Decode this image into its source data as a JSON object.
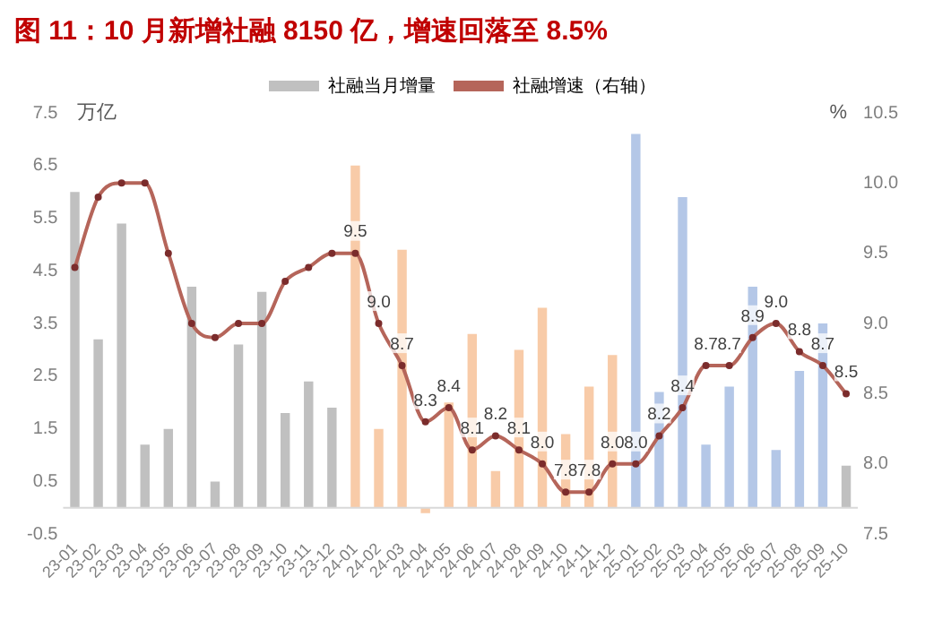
{
  "chart_data": {
    "type": "bar",
    "title": "图 11：10 月新增社融 8150 亿，增速回落至 8.5%",
    "ylabel": "万亿",
    "y2label": "%",
    "categories": [
      "23-01",
      "23-02",
      "23-03",
      "23-04",
      "23-05",
      "23-06",
      "23-07",
      "23-08",
      "23-09",
      "23-10",
      "23-11",
      "23-12",
      "24-01",
      "24-02",
      "24-03",
      "24-04",
      "24-05",
      "24-06",
      "24-07",
      "24-08",
      "24-09",
      "24-10",
      "24-11",
      "24-12",
      "25-01",
      "25-02",
      "25-03",
      "25-04",
      "25-05",
      "25-06",
      "25-07",
      "25-08",
      "25-09",
      "25-10"
    ],
    "series": [
      {
        "name": "社融当月增量",
        "axis": "y",
        "color": "#c0c0c0",
        "colors": [
          "#c0c0c0",
          "#c0c0c0",
          "#c0c0c0",
          "#c0c0c0",
          "#c0c0c0",
          "#c0c0c0",
          "#c0c0c0",
          "#c0c0c0",
          "#c0c0c0",
          "#c0c0c0",
          "#c0c0c0",
          "#c0c0c0",
          "#f8cba8",
          "#f8cba8",
          "#f8cba8",
          "#f8cba8",
          "#f8cba8",
          "#f8cba8",
          "#f8cba8",
          "#f8cba8",
          "#f8cba8",
          "#f8cba8",
          "#f8cba8",
          "#f8cba8",
          "#b4c7e7",
          "#b4c7e7",
          "#b4c7e7",
          "#b4c7e7",
          "#b4c7e7",
          "#b4c7e7",
          "#b4c7e7",
          "#b4c7e7",
          "#b4c7e7",
          "#c0c0c0"
        ],
        "values": [
          6.0,
          3.2,
          5.4,
          1.2,
          1.5,
          4.2,
          0.5,
          3.1,
          4.1,
          1.8,
          2.4,
          1.9,
          6.5,
          1.5,
          4.9,
          -0.1,
          2.0,
          3.3,
          0.7,
          3.0,
          3.8,
          1.4,
          2.3,
          2.9,
          7.1,
          2.2,
          5.9,
          1.2,
          2.3,
          4.2,
          1.1,
          2.6,
          3.5,
          0.8
        ]
      },
      {
        "name": "社融增速（右轴）",
        "type": "line",
        "axis": "y2",
        "color": "#b5655a",
        "marker": "circle",
        "line_style": "solid",
        "values": [
          9.4,
          9.9,
          10.0,
          10.0,
          9.5,
          9.0,
          8.9,
          9.0,
          9.0,
          9.3,
          9.4,
          9.5,
          9.5,
          9.0,
          8.7,
          8.3,
          8.4,
          8.1,
          8.2,
          8.1,
          8.0,
          7.8,
          7.8,
          8.0,
          8.0,
          8.2,
          8.4,
          8.7,
          8.7,
          8.9,
          9.0,
          8.8,
          8.7,
          8.5
        ],
        "value_labels": [
          null,
          null,
          null,
          null,
          null,
          null,
          null,
          null,
          null,
          null,
          null,
          null,
          "9.5",
          "9.0",
          "8.7",
          "8.3",
          "8.4",
          "8.1",
          "8.2",
          "8.1",
          "8.0",
          "7.8",
          "7.8",
          "8.0",
          "8.0",
          "8.2",
          "8.4",
          "8.7",
          "8.7",
          "8.9",
          "9.0",
          "8.8",
          "8.7",
          "8.5"
        ]
      }
    ],
    "ylim": [
      -0.5,
      7.5
    ],
    "yticks": [
      -0.5,
      0.5,
      1.5,
      2.5,
      3.5,
      4.5,
      5.5,
      6.5,
      7.5
    ],
    "y2lim": [
      7.5,
      10.5
    ],
    "y2ticks": [
      7.5,
      {
        "value": 8,
        "label": "8.0"
      },
      8.5,
      {
        "value": 9,
        "label": "9.0"
      },
      9.5,
      {
        "value": 10,
        "label": "10.0"
      },
      10.5
    ],
    "grid": false,
    "legend": "top"
  }
}
